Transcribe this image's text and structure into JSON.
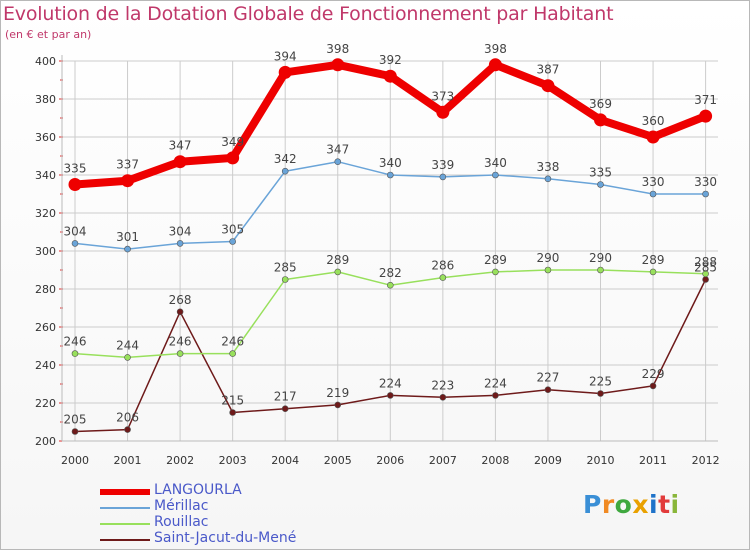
{
  "title": "Evolution de la Dotation Globale de Fonctionnement par Habitant",
  "subtitle": "(en € et par an)",
  "logo": {
    "letters": [
      "P",
      "r",
      "o",
      "x",
      "i",
      "t",
      "i"
    ],
    "colors": [
      "#3a8fd6",
      "#f08a24",
      "#3fa83f",
      "#e9a100",
      "#1f73c9",
      "#e23b3b",
      "#89b63a"
    ]
  },
  "colors": {
    "langourla": "#ee0000",
    "merillac": "#6aa4d8",
    "rouillac": "#98e05c",
    "saint_jacut": "#6e1a1a",
    "grid": "#cccccc",
    "axis_text": "#333333",
    "title": "#c0386a"
  },
  "chart_data": {
    "type": "line",
    "title": "Evolution de la Dotation Globale de Fonctionnement par Habitant",
    "subtitle": "(en € et par an)",
    "xlabel": "",
    "ylabel": "",
    "x": [
      "2000",
      "2001",
      "2002",
      "2003",
      "2004",
      "2005",
      "2006",
      "2007",
      "2008",
      "2009",
      "2010",
      "2011",
      "2012"
    ],
    "ylim": [
      200,
      400
    ],
    "yticks": [
      200,
      220,
      240,
      260,
      280,
      300,
      320,
      340,
      360,
      380,
      400
    ],
    "grid": true,
    "legend_position": "bottom-left",
    "series": [
      {
        "name": "LANGOURLA",
        "values": [
          335,
          337,
          347,
          349,
          394,
          398,
          392,
          373,
          398,
          387,
          369,
          360,
          371
        ]
      },
      {
        "name": "Mérillac",
        "values": [
          304,
          301,
          304,
          305,
          342,
          347,
          340,
          339,
          340,
          338,
          335,
          330,
          330
        ]
      },
      {
        "name": "Rouillac",
        "values": [
          246,
          244,
          246,
          246,
          285,
          289,
          282,
          286,
          289,
          290,
          290,
          289,
          288
        ]
      },
      {
        "name": "Saint-Jacut-du-Mené",
        "values": [
          205,
          206,
          268,
          215,
          217,
          219,
          224,
          223,
          224,
          227,
          225,
          229,
          285
        ]
      }
    ]
  }
}
